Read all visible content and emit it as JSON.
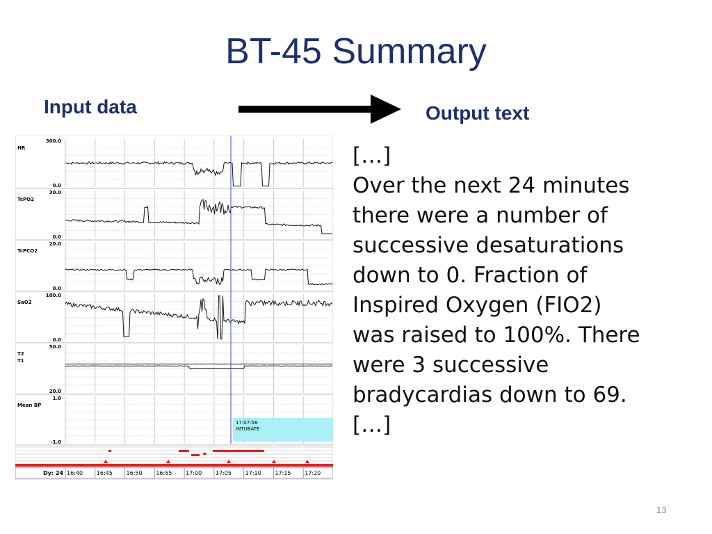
{
  "slide": {
    "title": "BT-45 Summary",
    "input_label": "Input data",
    "output_label": "Output text",
    "page_number": "13"
  },
  "output_text": {
    "lines": [
      "[…]",
      "Over the next 24 minutes",
      "there were a number of",
      "successive desaturations",
      "down to 0. Fraction of",
      "Inspired Oxygen (FIO2)",
      "was raised to 100%. There",
      "were 3 successive",
      "bradycardias down to 69.",
      "[…]"
    ]
  },
  "chart_data": {
    "type": "line",
    "panels": [
      {
        "name": "HR",
        "ymax": "300.0",
        "ymin": "0.0"
      },
      {
        "name": "TcPO2",
        "ymax": "30.0",
        "ymin": "0.0"
      },
      {
        "name": "TcPCO2",
        "ymax": "20.0",
        "ymin": "0.0"
      },
      {
        "name": "SaO2",
        "ymax": "100.0",
        "ymin": "0.0"
      },
      {
        "name": "T2",
        "name2": "T1",
        "ymax": "50.0",
        "ymin": "20.0"
      },
      {
        "name": "Mean BP",
        "ymax": "1.0",
        "ymin": "-1.0"
      }
    ],
    "event": {
      "time": "17:07:58",
      "label": "INTUBATE"
    },
    "day_label": "Dy: 24",
    "time_ticks": [
      "16:40",
      "16:45",
      "16:50",
      "16:55",
      "17:00",
      "17:05",
      "17:10",
      "17:15",
      "17:20"
    ],
    "colors": {
      "trace": "#111111",
      "marker": "#3344dd",
      "event_box": "#a9f0f7",
      "bars": "#ee1c1c"
    }
  }
}
